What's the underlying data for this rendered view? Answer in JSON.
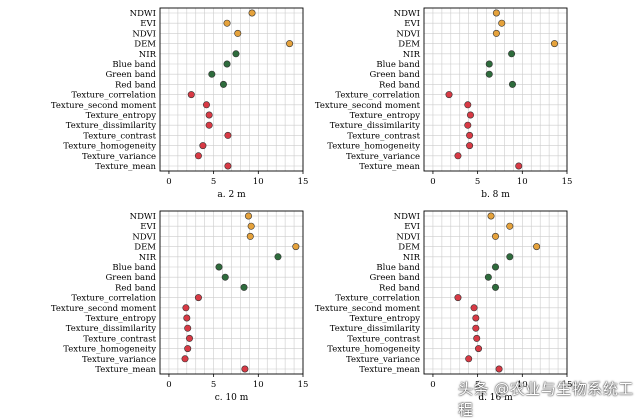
{
  "chart_data": [
    {
      "type": "scatter",
      "caption": "a. 2 m",
      "xlim": [
        -1,
        15
      ],
      "xticks": [
        0,
        5,
        10,
        15
      ],
      "features": [
        "NDWI",
        "EVI",
        "NDVI",
        "DEM",
        "NIR",
        "Blue band",
        "Green band",
        "Red band",
        "Texture_correlation",
        "Texture_second moment",
        "Texture_entropy",
        "Texture_dissimilarity",
        "Texture_contrast",
        "Texture_homogeneity",
        "Texture_variance",
        "Texture_mean"
      ],
      "values": [
        9.3,
        6.5,
        7.7,
        13.5,
        7.5,
        6.5,
        4.8,
        6.1,
        2.5,
        4.2,
        4.5,
        4.5,
        6.6,
        3.8,
        3.3,
        6.6
      ],
      "grid": true
    },
    {
      "type": "scatter",
      "caption": "b. 8 m",
      "xlim": [
        -1,
        15
      ],
      "xticks": [
        0,
        5,
        10,
        15
      ],
      "features": [
        "NDWI",
        "EVI",
        "NDVI",
        "DEM",
        "NIR",
        "Blue band",
        "Green band",
        "Red band",
        "Texture_correlation",
        "Texture_second moment",
        "Texture_entropy",
        "Texture_dissimilarity",
        "Texture_contrast",
        "Texture_homogeneity",
        "Texture_variance",
        "Texture_mean"
      ],
      "values": [
        7.1,
        7.7,
        7.1,
        13.6,
        8.8,
        6.3,
        6.3,
        8.9,
        1.8,
        3.9,
        4.2,
        3.9,
        4.1,
        4.1,
        2.8,
        9.6
      ],
      "grid": true
    },
    {
      "type": "scatter",
      "caption": "c. 10 m",
      "xlim": [
        -1,
        15
      ],
      "xticks": [
        0,
        5,
        10,
        15
      ],
      "features": [
        "NDWI",
        "EVI",
        "NDVI",
        "DEM",
        "NIR",
        "Blue band",
        "Green band",
        "Red band",
        "Texture_correlation",
        "Texture_second moment",
        "Texture_entropy",
        "Texture_dissimilarity",
        "Texture_contrast",
        "Texture_homogeneity",
        "Texture_variance",
        "Texture_mean"
      ],
      "values": [
        8.9,
        9.2,
        9.1,
        14.2,
        12.2,
        5.6,
        6.3,
        8.4,
        3.3,
        1.9,
        2.0,
        2.1,
        2.3,
        2.1,
        1.8,
        8.5
      ],
      "grid": true
    },
    {
      "type": "scatter",
      "caption": "d. 16 m",
      "xlim": [
        -1,
        15
      ],
      "xticks": [
        0,
        5,
        10,
        15
      ],
      "features": [
        "NDWI",
        "EVI",
        "NDVI",
        "DEM",
        "NIR",
        "Blue band",
        "Green band",
        "Red band",
        "Texture_correlation",
        "Texture_second moment",
        "Texture_entropy",
        "Texture_dissimilarity",
        "Texture_contrast",
        "Texture_homogeneity",
        "Texture_variance",
        "Texture_mean"
      ],
      "values": [
        6.5,
        8.6,
        7.0,
        11.6,
        8.6,
        7.0,
        6.2,
        7.0,
        2.8,
        4.6,
        4.8,
        4.8,
        4.9,
        5.1,
        4.0,
        7.4
      ],
      "grid": true
    }
  ],
  "groups": [
    "index",
    "index",
    "index",
    "index",
    "band",
    "band",
    "band",
    "band",
    "texture",
    "texture",
    "texture",
    "texture",
    "texture",
    "texture",
    "texture",
    "texture"
  ],
  "colors": {
    "index": "#e5a23c",
    "band": "#2e6b3c",
    "texture": "#d83a45",
    "grid": "#cccccc",
    "axis": "#000000"
  },
  "watermark": "头条 @农业与生物系统工程"
}
